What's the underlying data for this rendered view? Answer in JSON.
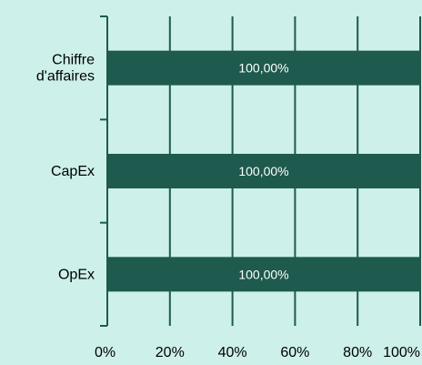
{
  "colors": {
    "background": "#cdf0ea",
    "bar": "#1e5a4e",
    "axis": "#1e5a4e",
    "grid": "#1e5a4e",
    "label_text": "#000000",
    "bar_label_text": "#ffffff"
  },
  "chart_data": {
    "type": "bar",
    "orientation": "horizontal",
    "categories": [
      "Chiffre d'affaires",
      "CapEx",
      "OpEx"
    ],
    "category_lines": [
      [
        "Chiffre",
        "d'affaires"
      ],
      [
        "CapEx"
      ],
      [
        "OpEx"
      ]
    ],
    "values": [
      100,
      100,
      100
    ],
    "data_labels": [
      "100,00%",
      "100,00%",
      "100,00%"
    ],
    "xlim": [
      0,
      100
    ],
    "x_ticks": [
      0,
      20,
      40,
      60,
      80,
      100
    ],
    "x_tick_labels": [
      "0%",
      "20%",
      "40%",
      "60%",
      "80%",
      "100%"
    ],
    "grid": true,
    "legend": "none"
  }
}
